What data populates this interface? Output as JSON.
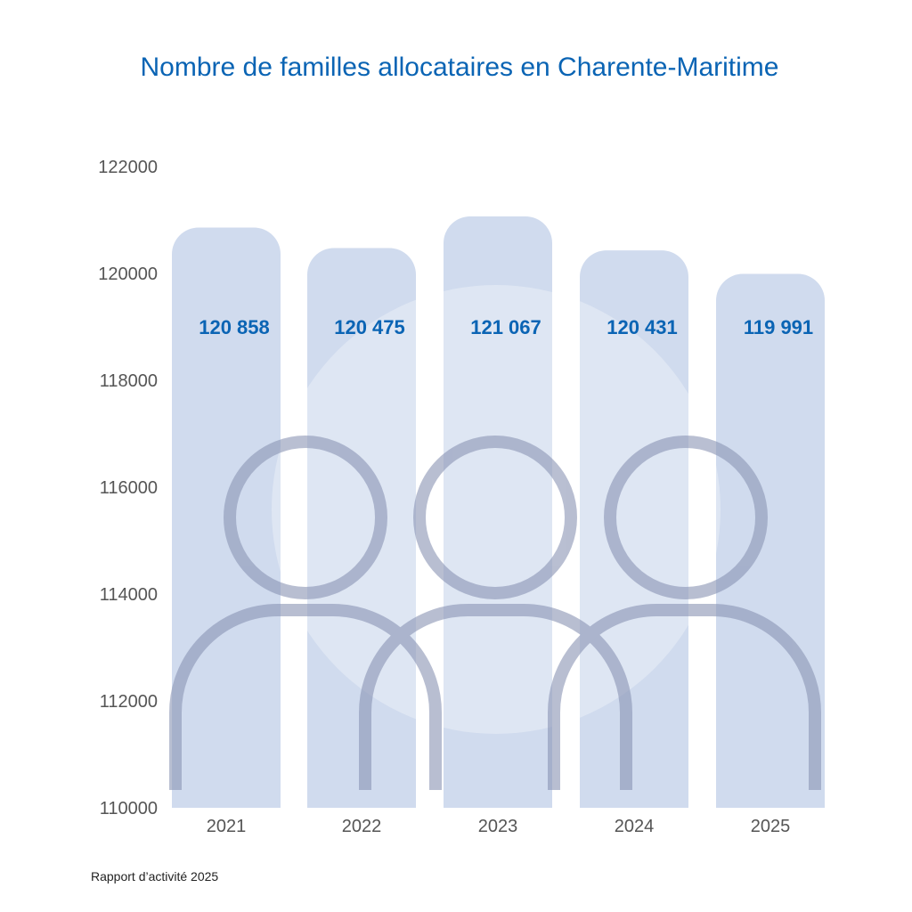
{
  "chart_data": {
    "type": "bar",
    "title": "Nombre de familles allocataires en Charente-Maritime",
    "categories": [
      "2021",
      "2022",
      "2023",
      "2024",
      "2025"
    ],
    "values": [
      120858,
      120475,
      121067,
      120431,
      119991
    ],
    "value_labels": [
      "120 858",
      "120 475",
      "121 067",
      "120 431",
      "119 991"
    ],
    "yticks": [
      110000,
      112000,
      114000,
      116000,
      118000,
      120000,
      122000
    ],
    "ylim": [
      110000,
      122000
    ],
    "xlabel": "",
    "ylabel": "",
    "grid": false,
    "bar_color": "#d0dbee",
    "label_color": "#0a64b4",
    "icon_color": "#8a94b4",
    "source": "Rapport d’activité 2025"
  }
}
